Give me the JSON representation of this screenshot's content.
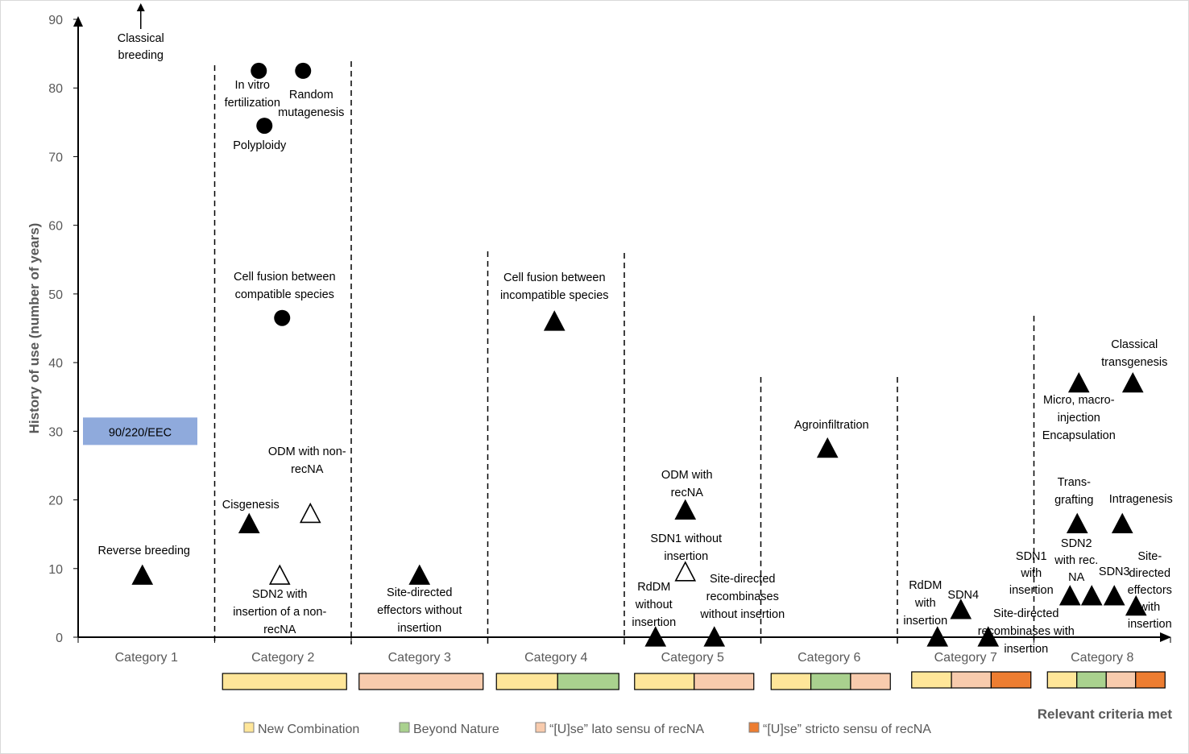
{
  "chart_data": {
    "type": "scatter",
    "title": "",
    "ylabel": "History of use (number of years)",
    "xlabel": "Relevant criteria met",
    "ylim": [
      0,
      90
    ],
    "yticks": [
      0,
      10,
      20,
      30,
      40,
      50,
      60,
      70,
      80,
      90
    ],
    "categories": [
      "Category 1",
      "Category 2",
      "Category 3",
      "Category 4",
      "Category 5",
      "Category 6",
      "Category 7",
      "Category 8"
    ],
    "colors": {
      "new_combination": "#FFE699",
      "beyond_nature": "#A9D18E",
      "use_lato": "#F8CBAD",
      "use_stricto": "#ED7D31",
      "band": "#8FAADC",
      "axis": "#000000"
    },
    "reference_band": {
      "label": "90/220/EEC",
      "y_from": 28,
      "y_to": 32
    },
    "arrow_annotation": {
      "label": "Classical breeding",
      "category": 1
    },
    "points": [
      {
        "label": "In vitro fertilization",
        "category": 2,
        "y": 82.5,
        "marker": "circle"
      },
      {
        "label": "Random mutagenesis",
        "category": 2,
        "y": 82.5,
        "marker": "circle"
      },
      {
        "label": "Polyploidy",
        "category": 2,
        "y": 74.5,
        "marker": "circle"
      },
      {
        "label": "Cell fusion between compatible species",
        "category": 2,
        "y": 46.5,
        "marker": "circle"
      },
      {
        "label": "Cisgenesis",
        "category": 2,
        "y": 16.5,
        "marker": "triangle"
      },
      {
        "label": "ODM with non-recNA",
        "category": 2,
        "y": 18,
        "marker": "triangle-open"
      },
      {
        "label": "SDN2 with insertion of a non-recNA",
        "category": 2,
        "y": 9,
        "marker": "triangle-open"
      },
      {
        "label": "Reverse breeding",
        "category": 1,
        "y": 9,
        "marker": "triangle"
      },
      {
        "label": "Site-directed effectors without insertion",
        "category": 3,
        "y": 9,
        "marker": "triangle"
      },
      {
        "label": "Cell fusion between incompatible species",
        "category": 4,
        "y": 46,
        "marker": "triangle"
      },
      {
        "label": "ODM with recNA",
        "category": 5,
        "y": 18.5,
        "marker": "triangle"
      },
      {
        "label": "SDN1 without insertion",
        "category": 5,
        "y": 9.5,
        "marker": "triangle-open"
      },
      {
        "label": "RdDM without insertion",
        "category": 5,
        "y": 0,
        "marker": "triangle"
      },
      {
        "label": "Site-directed recombinases without insertion",
        "category": 5,
        "y": 0,
        "marker": "triangle"
      },
      {
        "label": "Agroinfiltration",
        "category": 6,
        "y": 27.5,
        "marker": "triangle"
      },
      {
        "label": "RdDM with insertion",
        "category": 7,
        "y": 0,
        "marker": "triangle"
      },
      {
        "label": "SDN4",
        "category": 7,
        "y": 4,
        "marker": "triangle"
      },
      {
        "label": "Site-directed recombinases with insertion",
        "category": 7,
        "y": 0,
        "marker": "triangle"
      },
      {
        "label": "Micro, macro-injection Encapsulation",
        "category": 8,
        "y": 37,
        "marker": "triangle"
      },
      {
        "label": "Classical transgenesis",
        "category": 8,
        "y": 37,
        "marker": "triangle"
      },
      {
        "label": "Trans-grafting",
        "category": 8,
        "y": 16.5,
        "marker": "triangle"
      },
      {
        "label": "Intragenesis",
        "category": 8,
        "y": 16.5,
        "marker": "triangle"
      },
      {
        "label": "SDN1 with insertion",
        "category": 8,
        "y": 6,
        "marker": "triangle"
      },
      {
        "label": "SDN2 with rec. NA",
        "category": 8,
        "y": 6,
        "marker": "triangle"
      },
      {
        "label": "SDN3",
        "category": 8,
        "y": 6,
        "marker": "triangle"
      },
      {
        "label": "Site-directed effectors with insertion",
        "category": 8,
        "y": 4.5,
        "marker": "triangle"
      }
    ],
    "criteria_bars": [
      {
        "category": 2,
        "criteria": [
          "new_combination"
        ]
      },
      {
        "category": 3,
        "criteria": [
          "use_lato"
        ]
      },
      {
        "category": 4,
        "criteria": [
          "new_combination",
          "beyond_nature"
        ]
      },
      {
        "category": 5,
        "criteria": [
          "new_combination",
          "use_lato"
        ]
      },
      {
        "category": 6,
        "criteria": [
          "new_combination",
          "beyond_nature",
          "use_lato"
        ]
      },
      {
        "category": 7,
        "criteria": [
          "new_combination",
          "use_lato",
          "use_stricto"
        ]
      },
      {
        "category": 8,
        "criteria": [
          "new_combination",
          "beyond_nature",
          "use_lato",
          "use_stricto"
        ]
      }
    ],
    "legend": [
      {
        "key": "new_combination",
        "label": "New Combination"
      },
      {
        "key": "beyond_nature",
        "label": "Beyond Nature"
      },
      {
        "key": "use_lato",
        "label": "“[U]se” lato sensu of recNA"
      },
      {
        "key": "use_stricto",
        "label": "“[U]se” stricto sensu of recNA"
      }
    ]
  }
}
